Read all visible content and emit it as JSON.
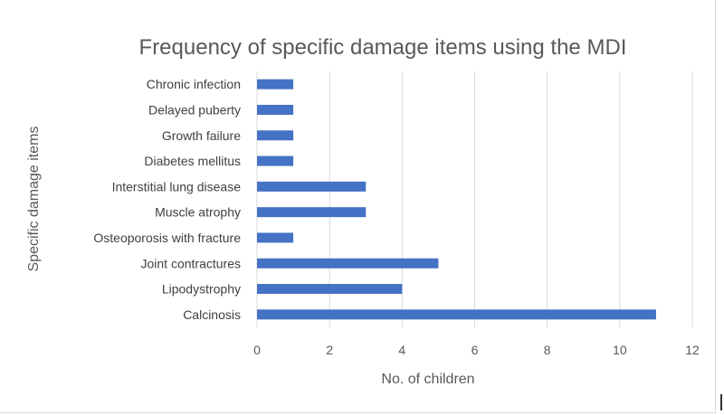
{
  "chart_data": {
    "type": "bar",
    "orientation": "horizontal",
    "title": "Frequency of specific damage items using the MDI",
    "xlabel": "No. of children",
    "ylabel": "Specific damage items",
    "categories": [
      "Chronic infection",
      "Delayed puberty",
      "Growth failure",
      "Diabetes mellitus",
      "Interstitial lung disease",
      "Muscle atrophy",
      "Osteoporosis with fracture",
      "Joint contractures",
      "Lipodystrophy",
      "Calcinosis"
    ],
    "values": [
      1,
      1,
      1,
      1,
      3,
      3,
      1,
      5,
      4,
      11
    ],
    "xlim": [
      0,
      12
    ],
    "xticks": [
      "0",
      "2",
      "4",
      "6",
      "8",
      "10",
      "12"
    ],
    "grid": "vertical",
    "bar_color": "#4472c4"
  }
}
